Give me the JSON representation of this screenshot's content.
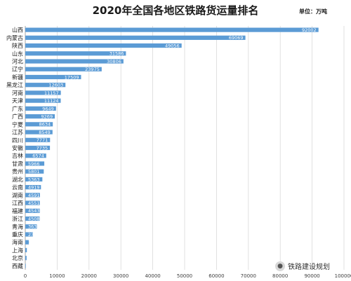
{
  "chart_data": {
    "type": "bar",
    "orientation": "horizontal",
    "title": "2020年全国各地区铁路货运量排名",
    "unit_label": "单位：万吨",
    "xlim": [
      0,
      100000
    ],
    "xticks": [
      "0",
      "10000",
      "20000",
      "30000",
      "40000",
      "50000",
      "60000",
      "70000",
      "80000",
      "90000",
      "100000"
    ],
    "grid": true,
    "bar_color": "#5b9bd5",
    "categories": [
      "山西",
      "内蒙古",
      "陕西",
      "山东",
      "河北",
      "辽宁",
      "新疆",
      "黑龙江",
      "河南",
      "天津",
      "广东",
      "广西",
      "宁夏",
      "江苏",
      "四川",
      "安徽",
      "吉林",
      "甘肃",
      "贵州",
      "湖北",
      "云南",
      "湖南",
      "江西",
      "福建",
      "浙江",
      "青海",
      "重庆",
      "海南",
      "上海",
      "北京",
      "西藏"
    ],
    "values": [
      92002,
      69069,
      49056,
      31586,
      30806,
      23975,
      17509,
      12603,
      11157,
      11124,
      9649,
      9269,
      8634,
      8549,
      7771,
      7735,
      6574,
      5966,
      5801,
      5363,
      4919,
      4591,
      4551,
      4543,
      4508,
      3634,
      2394,
      1135,
      494,
      414,
      152
    ]
  },
  "watermark": {
    "text": "铁路建设规划",
    "icon": "wechat-icon"
  }
}
